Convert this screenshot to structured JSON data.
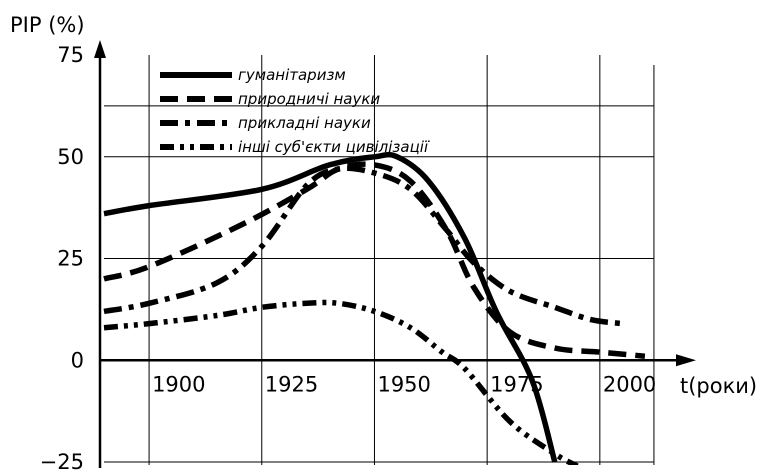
{
  "chart_data": {
    "type": "line",
    "title": "",
    "ylabel": "PIP (%)",
    "xlabel": "t(роки)",
    "xlim": [
      1890,
      2020
    ],
    "ylim": [
      -25,
      75
    ],
    "x_ticks": [
      1900,
      1925,
      1950,
      1975,
      2000
    ],
    "y_ticks": [
      75,
      50,
      25,
      0,
      -25
    ],
    "grid": true,
    "legend_position": "top-left",
    "series": [
      {
        "name": "гуманітаризм",
        "style": "solid",
        "x": [
          1890,
          1900,
          1925,
          1940,
          1950,
          1955,
          1962,
          1970,
          1977,
          1985,
          1990
        ],
        "y": [
          36,
          38,
          42,
          48,
          50,
          50,
          44,
          30,
          12,
          -5,
          -25
        ]
      },
      {
        "name": "природничі науки",
        "style": "dash",
        "x": [
          1890,
          1900,
          1920,
          1935,
          1942,
          1950,
          1958,
          1966,
          1972,
          1980,
          1990,
          2000,
          2010
        ],
        "y": [
          20,
          23,
          33,
          42,
          47,
          48,
          44,
          32,
          18,
          7,
          3,
          2,
          1
        ]
      },
      {
        "name": "прикладні науки",
        "style": "dash-dot",
        "x": [
          1890,
          1900,
          1915,
          1925,
          1935,
          1942,
          1950,
          1958,
          1966,
          1972,
          1980,
          1990,
          1998,
          2005
        ],
        "y": [
          12,
          14,
          19,
          28,
          43,
          47,
          46,
          42,
          32,
          24,
          17,
          13,
          10,
          9
        ]
      },
      {
        "name": "інші суб'єкти цивілізації",
        "style": "dash-dot-dot",
        "x": [
          1890,
          1900,
          1915,
          1925,
          1935,
          1942,
          1950,
          1958,
          1965,
          1970,
          1980,
          1990,
          1995
        ],
        "y": [
          8,
          9,
          11,
          13,
          14,
          14,
          12,
          8,
          2,
          -2,
          -15,
          -23,
          -26
        ]
      }
    ]
  }
}
